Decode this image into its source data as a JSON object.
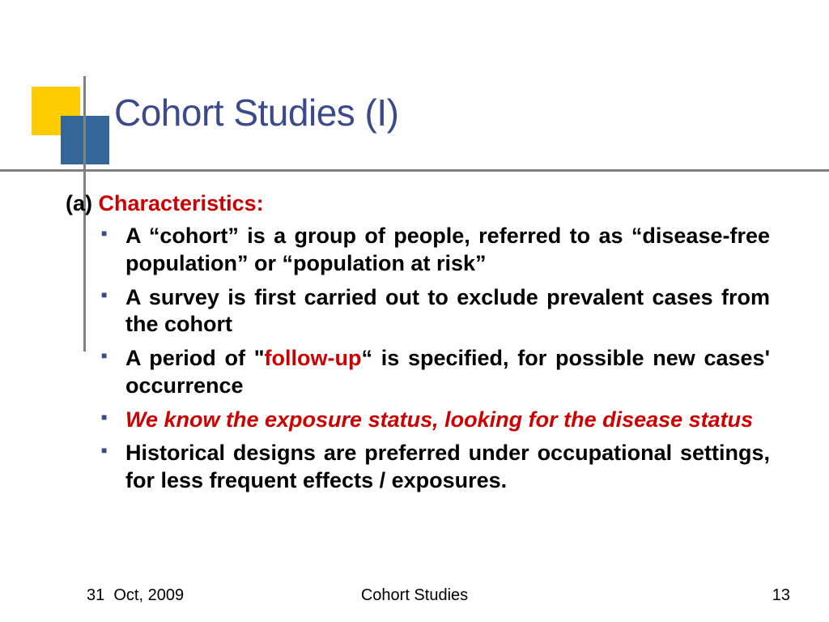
{
  "title": "Cohort Studies (I)",
  "heading": {
    "prefix": "(a) ",
    "red": "Characteristics:"
  },
  "bullets": {
    "b1": "A “cohort” is a group of people, referred to as “disease-free population” or “population at risk”",
    "b2": "A survey is first carried out to exclude prevalent cases from the cohort",
    "b3a": "A period of \"",
    "b3b": "follow-up",
    "b3c": "“ is specified, for possible new cases' occurrence",
    "b4": "We know the exposure status, looking for the disease status",
    "b5": "Historical designs are preferred under occupational settings, for less frequent effects / exposures."
  },
  "footer": {
    "date": "31  Oct, 2009",
    "center": "Cohort Studies",
    "page": "13"
  },
  "colors": {
    "accent_title": "#3a4a8a",
    "red": "#cc0000",
    "yellow": "#ffcc00",
    "blue_square": "#336699",
    "line": "#808080",
    "bullet": "#3a4a8a",
    "background": "#ffffff"
  }
}
